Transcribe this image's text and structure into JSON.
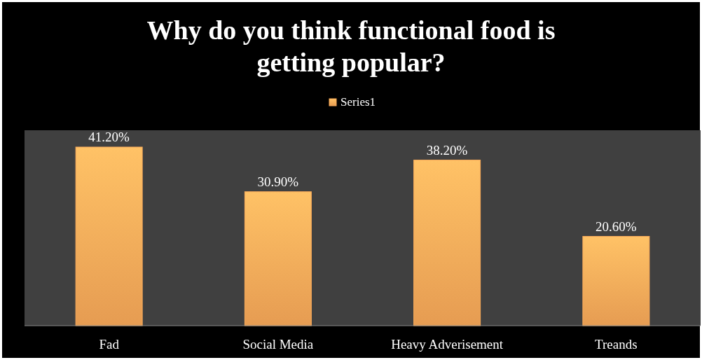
{
  "chart_data": {
    "type": "bar",
    "title": "Why do you think functional food is getting popular?",
    "categories": [
      "Fad",
      "Social Media",
      "Heavy Adverisement",
      "Treands"
    ],
    "series": [
      {
        "name": "Series1",
        "color": "#fbab5a",
        "values": [
          41.2,
          30.9,
          38.2,
          20.6
        ],
        "value_labels": [
          "41.20%",
          "30.90%",
          "38.20%",
          "20.60%"
        ]
      }
    ],
    "legend": "top"
  }
}
